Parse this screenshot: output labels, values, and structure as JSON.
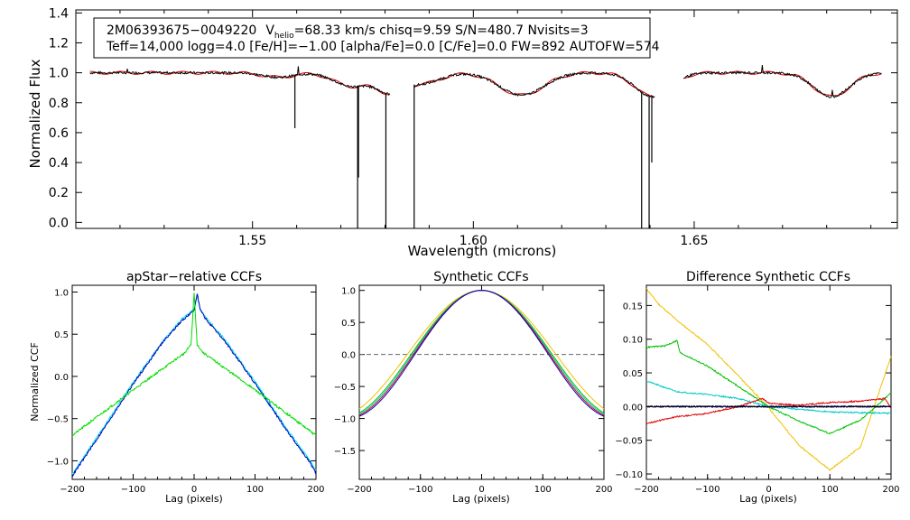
{
  "chart_data": [
    {
      "type": "line",
      "xlabel": "Wavelength (microns)",
      "ylabel": "Normalized Flux",
      "xlim": [
        1.51,
        1.696
      ],
      "ylim": [
        -0.04,
        1.42
      ],
      "xticks": [
        "1.55",
        "1.60",
        "1.65"
      ],
      "yticks": [
        "0.0",
        "0.2",
        "0.4",
        "0.6",
        "0.8",
        "1.0",
        "1.2",
        "1.4"
      ],
      "annotation": {
        "line1_star": "2M06393675−0049220",
        "line1_v": "V",
        "line1_sub": "helio",
        "line1_rest": "=68.33 km/s  chisq=9.59  S/N=480.7  Nvisits=3",
        "line2": "Teff=14,000 logg=4.0 [Fe/H]=−1.00 [alpha/Fe]=0.0 [C/Fe]=0.0 FW=892 AUTOFW=574"
      },
      "chips": [
        [
          1.5132,
          1.5812
        ],
        [
          1.5865,
          1.6412
        ],
        [
          1.6476,
          1.6925
        ]
      ],
      "series": [
        {
          "name": "observed",
          "color": "#000000"
        },
        {
          "name": "model",
          "color": "#e00000"
        }
      ],
      "absorption_lines": [
        {
          "center": 1.5558,
          "depth": 0.03,
          "width": 0.0035
        },
        {
          "center": 1.5725,
          "depth": 0.09,
          "width": 0.004
        },
        {
          "center": 1.5811,
          "depth": 0.12,
          "width": 0.003
        },
        {
          "center": 1.5885,
          "depth": 0.07,
          "width": 0.004
        },
        {
          "center": 1.6109,
          "depth": 0.15,
          "width": 0.005
        },
        {
          "center": 1.6407,
          "depth": 0.16,
          "width": 0.004
        },
        {
          "center": 1.6811,
          "depth": 0.16,
          "width": 0.004
        }
      ],
      "spikes_down": [
        {
          "x": 1.5596,
          "y": 0.63
        },
        {
          "x": 1.5738,
          "y": -0.04
        },
        {
          "x": 1.574,
          "y": 0.3
        },
        {
          "x": 1.5802,
          "y": -0.04
        },
        {
          "x": 1.5866,
          "y": -0.04
        },
        {
          "x": 1.6381,
          "y": -0.04
        },
        {
          "x": 1.6398,
          "y": -0.04
        },
        {
          "x": 1.6404,
          "y": 0.4
        }
      ]
    },
    {
      "type": "line",
      "title": "apStar−relative CCFs",
      "xlabel": "Lag (pixels)",
      "ylabel": "Normalized CCF",
      "xlim": [
        -200,
        200
      ],
      "ylim": [
        -1.22,
        1.08
      ],
      "xticks": [
        "−200",
        "−100",
        "0",
        "100",
        "200"
      ],
      "yticks": [
        "−1.0",
        "−0.5",
        "0.0",
        "0.5",
        "1.0"
      ],
      "ytick_values": [
        -1.0,
        -0.5,
        0.0,
        0.5,
        1.0
      ],
      "series": [
        {
          "name": "cyan visit",
          "color": "#00e5e5",
          "x": [
            -200,
            -150,
            -100,
            -50,
            -20,
            0,
            5,
            10,
            20,
            50,
            100,
            150,
            190,
            200
          ],
          "values": [
            -1.16,
            -0.62,
            -0.07,
            0.43,
            0.68,
            0.79,
            0.96,
            0.8,
            0.69,
            0.44,
            -0.06,
            -0.6,
            -1.0,
            -1.12
          ]
        },
        {
          "name": "blue visit",
          "color": "#0000c0",
          "x": [
            -200,
            -150,
            -100,
            -50,
            -20,
            0,
            5,
            10,
            20,
            50,
            100,
            150,
            190,
            200
          ],
          "values": [
            -1.18,
            -0.64,
            -0.09,
            0.42,
            0.66,
            0.78,
            0.99,
            0.79,
            0.67,
            0.42,
            -0.08,
            -0.62,
            -1.02,
            -1.15
          ]
        },
        {
          "name": "green visit",
          "color": "#00dd00",
          "x": [
            -200,
            -100,
            -50,
            -15,
            -5,
            0,
            5,
            15,
            50,
            100,
            200
          ],
          "values": [
            -0.7,
            -0.16,
            0.1,
            0.28,
            0.38,
            0.99,
            0.38,
            0.28,
            0.1,
            -0.16,
            -0.7
          ]
        }
      ]
    },
    {
      "type": "line",
      "title": "Synthetic CCFs",
      "xlabel": "Lag (pixels)",
      "xlim": [
        -200,
        200
      ],
      "ylim": [
        -1.95,
        1.08
      ],
      "xticks": [
        "−200",
        "−100",
        "0",
        "100",
        "200"
      ],
      "yticks": [
        "−1.5",
        "−1.0",
        "−0.5",
        "0.0",
        "0.5",
        "1.0"
      ],
      "ytick_values": [
        -1.5,
        -1.0,
        -0.5,
        0.0,
        0.5,
        1.0
      ],
      "reference_line": {
        "y": 0.0,
        "style": "dashed"
      },
      "curve_halfwidth": [
        118,
        112,
        110,
        108,
        106
      ],
      "series": [
        {
          "name": "yellow",
          "color": "#f0c000"
        },
        {
          "name": "green",
          "color": "#00c000"
        },
        {
          "name": "cyan",
          "color": "#00c8c8"
        },
        {
          "name": "red",
          "color": "#e00000"
        },
        {
          "name": "blue",
          "color": "#0000c0"
        }
      ]
    },
    {
      "type": "line",
      "title": "Difference Synthetic CCFs",
      "xlabel": "Lag (pixels)",
      "xlim": [
        -200,
        200
      ],
      "ylim": [
        -0.108,
        0.18
      ],
      "xticks": [
        "−200",
        "−100",
        "0",
        "100",
        "200"
      ],
      "yticks": [
        "−0.10",
        "−0.05",
        "0.00",
        "0.05",
        "0.10",
        "0.15"
      ],
      "ytick_values": [
        -0.1,
        -0.05,
        0.0,
        0.05,
        0.1,
        0.15
      ],
      "reference_line": {
        "y": 0.0,
        "style": "dashed"
      },
      "series": [
        {
          "name": "yellow",
          "color": "#f0c000",
          "x": [
            -200,
            -180,
            -150,
            -100,
            -50,
            0,
            50,
            100,
            150,
            200
          ],
          "values": [
            0.175,
            0.152,
            0.128,
            0.092,
            0.046,
            -0.002,
            -0.058,
            -0.094,
            -0.06,
            0.074
          ]
        },
        {
          "name": "green",
          "color": "#00c000",
          "x": [
            -200,
            -170,
            -150,
            -145,
            -100,
            -50,
            0,
            50,
            100,
            150,
            200
          ],
          "values": [
            0.088,
            0.09,
            0.098,
            0.08,
            0.06,
            0.03,
            0.0,
            -0.022,
            -0.04,
            -0.02,
            0.02
          ]
        },
        {
          "name": "cyan",
          "color": "#00c8c8",
          "x": [
            -200,
            -150,
            -100,
            -50,
            0,
            100,
            200
          ],
          "values": [
            0.038,
            0.022,
            0.018,
            0.012,
            0.0,
            -0.008,
            -0.01
          ]
        },
        {
          "name": "red",
          "color": "#e00000",
          "x": [
            -200,
            -150,
            -100,
            -50,
            -10,
            0,
            50,
            100,
            150,
            190,
            200
          ],
          "values": [
            -0.025,
            -0.015,
            -0.01,
            0.0,
            0.012,
            0.005,
            0.002,
            0.006,
            0.008,
            0.012,
            -0.002
          ]
        },
        {
          "name": "blue",
          "color": "#0000c0",
          "x": [
            -200,
            200
          ],
          "values": [
            0.0,
            0.0
          ]
        },
        {
          "name": "black",
          "color": "#000000",
          "x": [
            -200,
            200
          ],
          "values": [
            0.0,
            0.0
          ]
        }
      ]
    }
  ]
}
